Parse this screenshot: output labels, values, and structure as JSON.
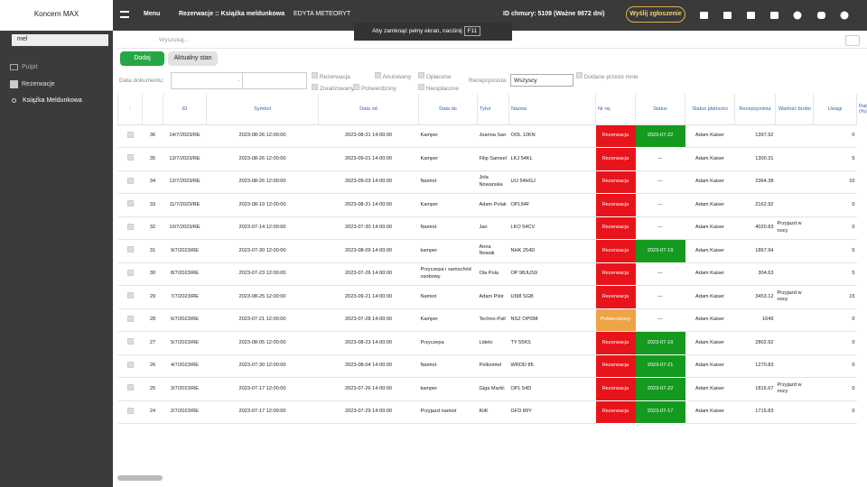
{
  "sidebar": {
    "company": "Koncern MAX",
    "search": "mel",
    "nav": [
      "Pulpit",
      "Rezerwacje",
      "Książka Meldunkowa"
    ]
  },
  "topbar": {
    "menu": "Menu",
    "breadcrumb": "Rezerwacje :: Książka meldunkowa",
    "user": "EDYTA METEORYT",
    "cloud": "ID chmury: 5109 (Ważne 9872 dni)",
    "report": "Wyślij zgłoszenie"
  },
  "fullscreen": {
    "text": "Aby zamknąć pełny ekran, naciśnij",
    "key": "F11"
  },
  "toolbar": {
    "search_placeholder": "Wyszukaj...",
    "add": "Dodaj",
    "state": "Aktualny stan"
  },
  "filters": {
    "date_label": "Data dokumentu:",
    "date_sep": "-",
    "checkboxes": [
      "Rezerwacja",
      "Anulowany",
      "Opłacone",
      "Zrealizowany",
      "Potwierdzony",
      "Nieopłacone"
    ],
    "receptionist_label": "Recepcjonista:",
    "receptionist_value": "Wszyscy",
    "mine": "Dodane przeze mnie"
  },
  "table": {
    "columns": [
      "ID",
      "Symbol",
      "Data od",
      "Data do",
      "Tytuł",
      "Nazwa",
      "Nr rej",
      "Status",
      "Status płatności",
      "Recepcjonista",
      "Wartość brutto",
      "Uwagi",
      "Rabat (%)"
    ],
    "rows": [
      {
        "id": 36,
        "symbol": "14/7/2023/RE",
        "from": "2023-08-26 12:00:00",
        "to": "2023-08-31 14:00:00",
        "title": "Kamper",
        "name": "Joanna San",
        "plate": "OOL 12KN",
        "status": "Rezerwacja",
        "payment": "2023-07-22",
        "receptionist": "Adam Kaiser",
        "gross": 1397.92,
        "discount": 0
      },
      {
        "id": 35,
        "symbol": "13/7/2023/RE",
        "from": "2023-08-26 12:00:00",
        "to": "2023-09-01 14:00:00",
        "title": "Kamper",
        "name": "Filip Samsel",
        "plate": "LKJ 54KL",
        "status": "Rezerwacja",
        "payment": "---",
        "receptionist": "Adam Kaiser",
        "gross": 1300.31,
        "discount": 5
      },
      {
        "id": 34,
        "symbol": "12/7/2023/RE",
        "from": "2023-08-26 12:00:00",
        "to": "2023-09-03 14:00:00",
        "title": "Namiot",
        "name": "Jola Nowanska",
        "plate": "UIJ 54HGJ",
        "status": "Rezerwacja",
        "payment": "---",
        "receptionist": "Adam Kaiser",
        "gross": 2364.38,
        "discount": 10
      },
      {
        "id": 33,
        "symbol": "11/7/2023/RE",
        "from": "2023-08-19 12:00:00",
        "to": "2023-08-31 14:00:00",
        "title": "Kamper",
        "name": "Adam Polak",
        "plate": "OPL54F",
        "status": "Rezerwacja",
        "payment": "---",
        "receptionist": "Adam Kaiser",
        "gross": 2162.92,
        "discount": 0
      },
      {
        "id": 32,
        "symbol": "10/7/2023/RE",
        "from": "2023-07-14 12:00:00",
        "to": "2023-07-30 14:00:00",
        "title": "Namiot",
        "name": "Jan",
        "plate": "LKO 54CV",
        "status": "Rezerwacja",
        "payment": "---",
        "receptionist": "Adam Kaiser",
        "gross": 4020.83,
        "notes": "Przyjazd w nocy",
        "discount": 0
      },
      {
        "id": 31,
        "symbol": "9/7/2023/RE",
        "from": "2023-07-30 12:00:00",
        "to": "2023-08-09 14:00:00",
        "title": "kamper",
        "name": "Anna Nowak",
        "plate": "NHK 254D",
        "status": "Rezerwacja",
        "payment": "2023-07-19",
        "receptionist": "Adam Kaiser",
        "gross": 1867.94,
        "discount": 5
      },
      {
        "id": 30,
        "symbol": "8/7/2023/RE",
        "from": "2023-07-23 12:00:00",
        "to": "2023-07-26 14:00:00",
        "title": "Przyczepa i samochód osobowy",
        "name": "Ola Pola",
        "plate": "OP 98JUS9",
        "status": "Rezerwacja",
        "payment": "---",
        "receptionist": "Adam Kaiser",
        "gross": 304.63,
        "discount": 5
      },
      {
        "id": 29,
        "symbol": "7/7/2023/RE",
        "from": "2023-08-25 12:00:00",
        "to": "2023-09-21 14:00:00",
        "title": "Namiot",
        "name": "Adam Pilot",
        "plate": "UI98 SGB",
        "status": "Rezerwacja",
        "payment": "---",
        "receptionist": "Adam Kaiser",
        "gross": 3453.12,
        "notes": "Przyjazd w nocy",
        "discount": 15
      },
      {
        "id": 28,
        "symbol": "6/7/2023/RE",
        "from": "2023-07-21 12:00:00",
        "to": "2023-07-28 14:00:00",
        "title": "Kamper",
        "name": "Techno-Pall",
        "plate": "NSZ OP098",
        "status": "Potwierdzony",
        "payment": "---",
        "receptionist": "Adam Kaiser",
        "gross": 1649,
        "discount": 0
      },
      {
        "id": 27,
        "symbol": "5/7/2023/RE",
        "from": "2023-08-05 12:00:00",
        "to": "2023-08-23 14:00:00",
        "title": "Przyczepa",
        "name": "Lidelo",
        "plate": "TY 55KS",
        "status": "Rezerwacja",
        "payment": "2023-07-19",
        "receptionist": "Adam Kaiser",
        "gross": 2802.92,
        "discount": 0
      },
      {
        "id": 26,
        "symbol": "4/7/2023/RE",
        "from": "2023-07-30 12:00:00",
        "to": "2023-08-04 14:00:00",
        "title": "Namiot",
        "name": "Polkomtel",
        "plate": "WRDD 85",
        "status": "Rezerwacja",
        "payment": "2023-07-21",
        "receptionist": "Adam Kaiser",
        "gross": 1270.83,
        "discount": 0
      },
      {
        "id": 25,
        "symbol": "3/7/2023/RE",
        "from": "2023-07-17 12:00:00",
        "to": "2023-07-26 14:00:00",
        "title": "kamper",
        "name": "Giga Marlić",
        "plate": "OPL 54D",
        "status": "Rezerwacja",
        "payment": "2023-07-22",
        "receptionist": "Adam Kaiser",
        "gross": 1816.67,
        "notes": "Przyjazd w nocy",
        "discount": 0
      },
      {
        "id": 24,
        "symbol": "2/7/2023/RE",
        "from": "2023-07-17 12:00:00",
        "to": "2023-07-29 14:00:00",
        "title": "Przyjazd namiot",
        "name": "KiiK",
        "plate": "GFD 89Y",
        "status": "Rezerwacja",
        "payment": "2023-07-17",
        "receptionist": "Adam Kaiser",
        "gross": 1715.83,
        "discount": 0
      }
    ]
  }
}
